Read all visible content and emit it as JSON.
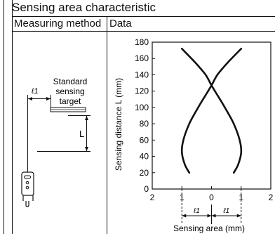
{
  "title": "Sensing area characteristic",
  "headers": {
    "method": "Measuring method",
    "data": "Data"
  },
  "diagram": {
    "l1_label": "ℓ1",
    "target_line1": "Standard",
    "target_line2": "sensing",
    "target_line3": "target",
    "distance_label": "L"
  },
  "chart_data": {
    "type": "line",
    "xlabel": "Sensing area (mm)",
    "ylabel": "Sensing distance L (mm)",
    "xlim": [
      -2,
      2
    ],
    "ylim": [
      0,
      180
    ],
    "x_ticks": [
      2,
      1,
      0,
      1,
      2
    ],
    "y_ticks": [
      0,
      20,
      40,
      60,
      80,
      100,
      120,
      140,
      160,
      180
    ],
    "grid": false,
    "annotation_l1": "ℓ1",
    "series": [
      {
        "x": [
          -0.75,
          -0.9,
          -1.0,
          -0.95,
          -0.75,
          -0.45,
          -0.15,
          0.0,
          0.2,
          0.55,
          1.0
        ],
        "y": [
          20,
          30,
          45,
          60,
          80,
          100,
          118,
          127,
          140,
          155,
          172
        ]
      },
      {
        "x": [
          0.75,
          0.9,
          1.0,
          0.95,
          0.75,
          0.45,
          0.15,
          0.0,
          -0.2,
          -0.55,
          -1.0
        ],
        "y": [
          20,
          30,
          45,
          60,
          80,
          100,
          118,
          127,
          140,
          155,
          172
        ]
      }
    ]
  }
}
